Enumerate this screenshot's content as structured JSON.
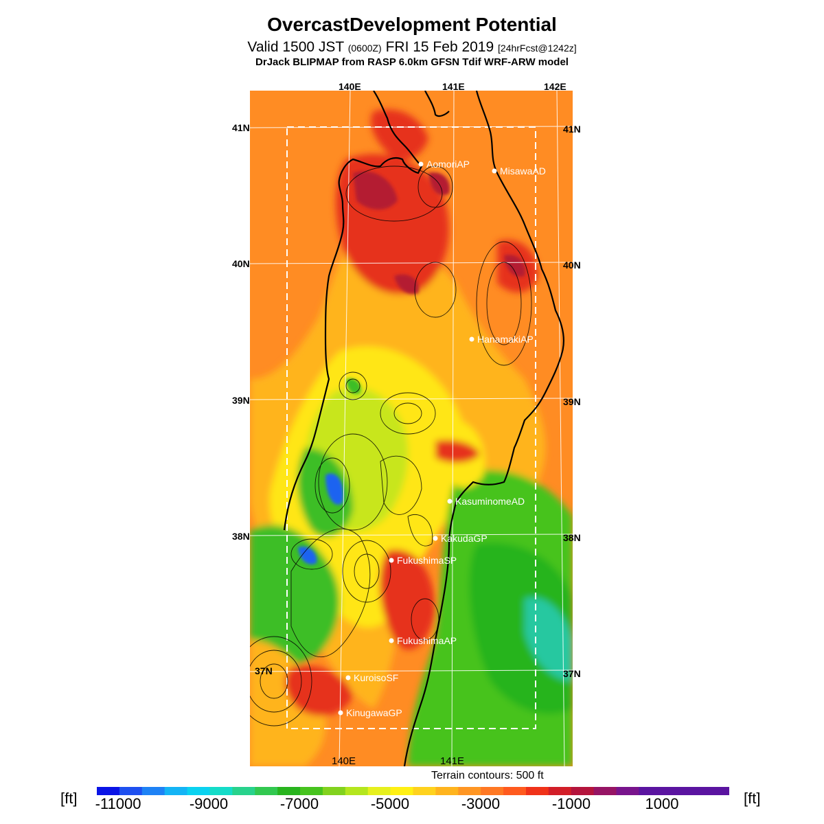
{
  "header": {
    "title": "OvercastDevelopment Potential",
    "valid_prefix": "Valid 1500 JST",
    "valid_z": "(0600Z)",
    "valid_date": "FRI 15 Feb 2019",
    "valid_fcst": "[24hrFcst@1242z]",
    "model": "DrJack BLIPMAP from RASP 6.0km GFSN Tdif WRF-ARW model"
  },
  "map": {
    "lon_labels_top": [
      "140E",
      "141E",
      "142E"
    ],
    "lon_labels_bottom": [
      "140E",
      "141E"
    ],
    "lat_labels_left": [
      "41N",
      "40N",
      "39N",
      "38N",
      "37N"
    ],
    "lat_labels_right": [
      "41N",
      "40N",
      "39N",
      "38N",
      "37N"
    ],
    "sites": [
      "AomoriAP",
      "MisawaAD",
      "HanamakiAP",
      "KasuminomeAD",
      "KakudaGP",
      "FukushimaSP",
      "FukushimaAP",
      "KuroisoSF",
      "KinugawaGP"
    ],
    "terrain_note": "Terrain contours: 500 ft"
  },
  "colorbar": {
    "unit_left": "[ft]",
    "unit_right": "[ft]",
    "labels": [
      "-11000",
      "-9000",
      "-7000",
      "-5000",
      "-3000",
      "-1000",
      "1000"
    ],
    "colors": [
      "#0a14e6",
      "#1e50f0",
      "#1e82f5",
      "#14b4f5",
      "#0ad2f0",
      "#14dcc8",
      "#28d28c",
      "#32c850",
      "#28b41e",
      "#46c31e",
      "#82d21e",
      "#b4e61e",
      "#e6f01e",
      "#fff014",
      "#ffd21e",
      "#ffb41e",
      "#ff9623",
      "#ff7823",
      "#ff5a1e",
      "#f03219",
      "#d21e28",
      "#b4143c",
      "#961464",
      "#78148c",
      "#5a14a0"
    ]
  },
  "field_colors": {
    "dark_red": "#b41e32",
    "red": "#e6321e",
    "orange": "#ff8c23",
    "yellow_orange": "#ffb41e",
    "yellow": "#ffe614",
    "lime": "#c8e61e",
    "green": "#3cbe28",
    "teal": "#28c8a0",
    "blue": "#1e64f0"
  }
}
